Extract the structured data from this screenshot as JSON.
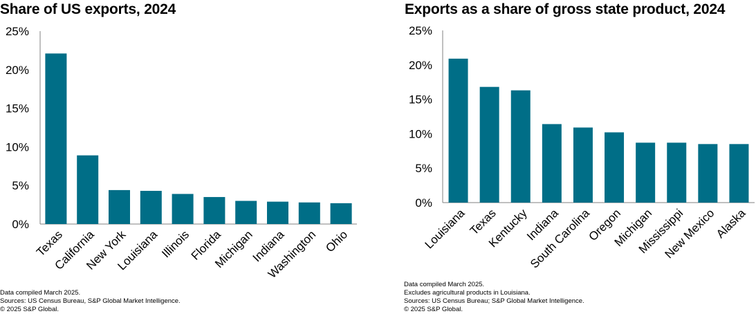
{
  "chart_data": [
    {
      "type": "bar",
      "title": "Share of US exports, 2024",
      "xlabel": "",
      "ylabel": "",
      "categories": [
        "Texas",
        "California",
        "New York",
        "Louisiana",
        "Illinois",
        "Florida",
        "Michigan",
        "Indiana",
        "Washington",
        "Ohio"
      ],
      "values": [
        22.1,
        8.9,
        4.4,
        4.3,
        3.9,
        3.5,
        3.0,
        2.9,
        2.8,
        2.7
      ],
      "ylim": [
        0,
        25
      ],
      "yticks": [
        "0%",
        "5%",
        "10%",
        "15%",
        "20%",
        "25%"
      ],
      "grid": false,
      "bar_color": "#006e87",
      "footnotes": [
        "Data compiled March 2025.",
        "Sources: US Census Bureau, S&P Global Market Intelligence.",
        "© 2025 S&P Global."
      ]
    },
    {
      "type": "bar",
      "title": "Exports as a share of gross state product, 2024",
      "xlabel": "",
      "ylabel": "",
      "categories": [
        "Louisiana",
        "Texas",
        "Kentucky",
        "Indiana",
        "South Carolina",
        "Oregon",
        "Michigan",
        "Mississippi",
        "New Mexico",
        "Alaska"
      ],
      "values": [
        20.9,
        16.8,
        16.3,
        11.4,
        10.9,
        10.2,
        8.7,
        8.7,
        8.5,
        8.5
      ],
      "ylim": [
        0,
        25
      ],
      "yticks": [
        "0%",
        "5%",
        "10%",
        "15%",
        "20%",
        "25%"
      ],
      "grid": false,
      "bar_color": "#006e87",
      "footnotes": [
        "Data compiled March 2025.",
        "Excludes agricultural products in Louisiana.",
        "Sources: US Census Bureau; S&P Global Market Intelligence.",
        "© 2025 S&P Global."
      ]
    }
  ]
}
